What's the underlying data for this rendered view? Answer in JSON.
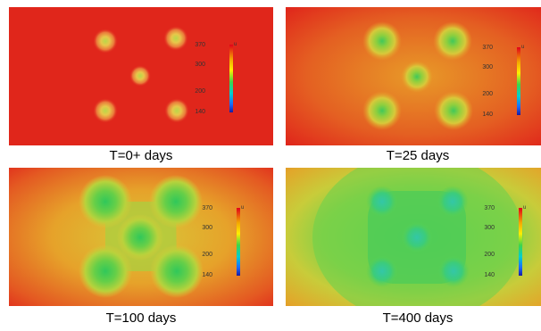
{
  "colorbar": {
    "ticks": [
      "370",
      "300",
      "200",
      "140"
    ],
    "unit": "u"
  },
  "panels": [
    {
      "id": "t0",
      "caption": "T=0+ days",
      "spread": 0.0
    },
    {
      "id": "t25",
      "caption": "T=25 days",
      "spread": 0.35
    },
    {
      "id": "t100",
      "caption": "T=100 days",
      "spread": 0.7
    },
    {
      "id": "t400",
      "caption": "T=400 days",
      "spread": 1.0
    }
  ],
  "colors": {
    "hot": "#e0261b",
    "warm": "#f08a1a",
    "yellow": "#d9d32c",
    "green": "#3fcf4a",
    "cyan": "#33c7a8"
  }
}
